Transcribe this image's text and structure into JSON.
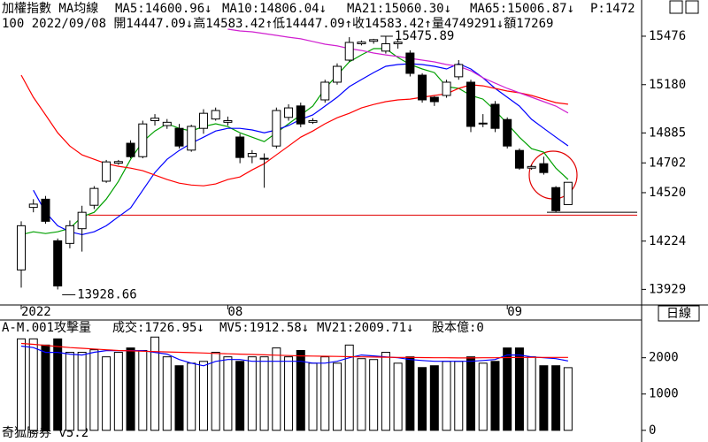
{
  "chart_data": [
    {
      "type": "candlestick",
      "title": "加權指數 MA均線",
      "subtitle": "100 2022/09/08 開14447.09↓高14583.42↑低14447.09↑收14583.42↑量4749291↓額17269",
      "categories": [
        "2022",
        null,
        null,
        null,
        null,
        null,
        null,
        null,
        null,
        null,
        null,
        null,
        null,
        null,
        null,
        null,
        null,
        "08",
        null,
        null,
        null,
        null,
        null,
        null,
        null,
        null,
        null,
        null,
        null,
        null,
        null,
        null,
        null,
        null,
        null,
        null,
        null,
        null,
        null,
        null,
        "09",
        null,
        null,
        null,
        null,
        null
      ],
      "open": [
        14048,
        14430,
        14480,
        14226,
        14210,
        14300,
        14443,
        14590,
        14700,
        14822,
        14740,
        14960,
        14930,
        14913,
        14780,
        14913,
        14970,
        14950,
        14860,
        14740,
        14725,
        14805,
        14980,
        15050,
        14950,
        15087,
        15195,
        15330,
        15430,
        15445,
        15385,
        15430,
        15373,
        15238,
        15103,
        15114,
        15228,
        15195,
        14940,
        15060,
        14967,
        14778,
        14670,
        14697,
        14551,
        14447.09
      ],
      "high": [
        14345,
        14480,
        14500,
        14240,
        14350,
        14440,
        14560,
        14720,
        14720,
        14840,
        14960,
        15000,
        14970,
        14940,
        14935,
        15030,
        15040,
        14985,
        14880,
        14780,
        14760,
        15040,
        15060,
        15070,
        14975,
        15210,
        15310,
        15470,
        15450,
        15460,
        15475.89,
        15460,
        15390,
        15250,
        15110,
        15210,
        15330,
        15210,
        15000,
        15080,
        14980,
        14790,
        14690,
        14740,
        14560,
        14583.42
      ],
      "low": [
        13940,
        14400,
        14330,
        13928.66,
        14180,
        14160,
        14420,
        14580,
        14690,
        14730,
        14730,
        14930,
        14910,
        14790,
        14770,
        14880,
        14960,
        14930,
        14700,
        14700,
        14550,
        14790,
        14960,
        14920,
        14940,
        15070,
        15180,
        15320,
        15420,
        15430,
        15370,
        15400,
        15230,
        15070,
        15050,
        15100,
        15210,
        14890,
        14920,
        14890,
        14790,
        14660,
        14660,
        14630,
        14400,
        14447.09
      ],
      "close": [
        14318,
        14450,
        14345,
        13950,
        14318,
        14400,
        14546,
        14708,
        14710,
        14740,
        14940,
        14975,
        14950,
        14805,
        14925,
        15005,
        15022,
        14960,
        14735,
        14760,
        14730,
        15022,
        15038,
        14940,
        14960,
        15195,
        15292,
        15438,
        15440,
        15455,
        15430,
        15440,
        15249,
        15087,
        15076,
        15195,
        15303,
        14925,
        14945,
        14913,
        14805,
        14670,
        14680,
        14643,
        14410,
        14583.42
      ],
      "series": [
        {
          "name": "MA5:14600.96↓",
          "color": "#00a000",
          "values": [
            14264,
            14281,
            14270,
            14281,
            14302,
            14373,
            14400,
            14481,
            14589,
            14724,
            14832,
            14897,
            14941,
            14913,
            14897,
            14924,
            14941,
            14924,
            14886,
            14859,
            14832,
            14886,
            14941,
            14995,
            15049,
            15157,
            15238,
            15319,
            15362,
            15400,
            15400,
            15346,
            15303,
            15276,
            15254,
            15168,
            15157,
            15114,
            15092,
            15022,
            14941,
            14859,
            14789,
            14767,
            14670,
            14600.96
          ]
        },
        {
          "name": "MA10:14806.04↓",
          "color": "#0000ff",
          "values": [
            null,
            14535,
            14400,
            14318,
            14281,
            14264,
            14281,
            14318,
            14373,
            14427,
            14535,
            14643,
            14724,
            14778,
            14822,
            14859,
            14897,
            14913,
            14913,
            14903,
            14886,
            14903,
            14930,
            14968,
            14995,
            15049,
            15103,
            15168,
            15211,
            15254,
            15292,
            15303,
            15308,
            15303,
            15292,
            15276,
            15308,
            15276,
            15222,
            15157,
            15103,
            15049,
            14968,
            14913,
            14859,
            14806.04
          ]
        },
        {
          "name": "MA21:15060.30↓",
          "color": "#ff0000",
          "values": [
            15238,
            15103,
            14995,
            14886,
            14805,
            14751,
            14724,
            14697,
            14681,
            14670,
            14654,
            14627,
            14600,
            14578,
            14567,
            14562,
            14573,
            14600,
            14616,
            14659,
            14697,
            14751,
            14805,
            14859,
            14897,
            14941,
            14978,
            15005,
            15038,
            15059,
            15076,
            15087,
            15092,
            15103,
            15114,
            15124,
            15157,
            15179,
            15173,
            15157,
            15141,
            15130,
            15114,
            15092,
            15070,
            15060.3
          ]
        },
        {
          "name": "MA65:15006.87↓",
          "color": "#d020d0",
          "values": [
            null,
            null,
            null,
            null,
            null,
            null,
            null,
            null,
            null,
            null,
            null,
            null,
            null,
            null,
            null,
            null,
            null,
            15519,
            15508,
            15503,
            15492,
            15481,
            15470,
            15460,
            15444,
            15427,
            15417,
            15400,
            15389,
            15373,
            15362,
            15352,
            15341,
            15330,
            15319,
            15303,
            15292,
            15265,
            15222,
            15189,
            15157,
            15130,
            15103,
            15076,
            15049,
            15006.87
          ]
        }
      ],
      "extra_legend": {
        "text": "P:1472",
        "color": "#ff40a0"
      },
      "annotations": [
        "15475.89",
        "13928.66"
      ],
      "reference_lines": [
        {
          "value": 14383,
          "color": "#e00000"
        },
        {
          "value": 14400,
          "color": "#000000"
        }
      ],
      "ylim": [
        13850,
        15600
      ],
      "yticks": [
        13929,
        14224,
        14520,
        14702,
        14885,
        15180,
        15476
      ],
      "grid": false
    },
    {
      "type": "bar",
      "title": "A-M.001攻擊量",
      "series": [
        {
          "name": "成交:1726.95↓",
          "color": "#008000",
          "values": [
            2520,
            2520,
            2350,
            2520,
            2150,
            2150,
            2220,
            2025,
            2150,
            2270,
            2200,
            2570,
            2025,
            1780,
            1850,
            1900,
            2150,
            2025,
            1900,
            2025,
            2025,
            2270,
            2025,
            2200,
            1850,
            2025,
            1850,
            2350,
            1975,
            1950,
            2150,
            1850,
            2025,
            1730,
            1780,
            1900,
            1900,
            2025,
            1850,
            1900,
            2270,
            2270,
            2025,
            1780,
            1780,
            1726.95
          ]
        },
        {
          "name": "MV5:1912.58↓",
          "color": "#0000ff",
          "values": [
            2321,
            2280,
            2148,
            2148,
            2100,
            2074,
            2150,
            2198,
            2198,
            2198,
            2198,
            2148,
            2100,
            1950,
            1850,
            1778,
            1900,
            1951,
            1951,
            1901,
            1901,
            1901,
            1901,
            1901,
            1852,
            1852,
            1901,
            2000,
            2074,
            2050,
            2025,
            2000,
            1951,
            1925,
            1901,
            1901,
            1901,
            1901,
            1925,
            1951,
            2074,
            2074,
            2025,
            2000,
            1975,
            1912.58
          ]
        },
        {
          "name": "MV21:2009.71↓",
          "color": "#ff0000",
          "values": [
            2395,
            2370,
            2340,
            2310,
            2280,
            2260,
            2240,
            2220,
            2200,
            2190,
            2180,
            2170,
            2160,
            2150,
            2140,
            2130,
            2120,
            2110,
            2100,
            2090,
            2080,
            2070,
            2060,
            2050,
            2045,
            2040,
            2035,
            2030,
            2025,
            2020,
            2015,
            2010,
            2010,
            2005,
            2000,
            2000,
            1995,
            1995,
            2000,
            2000,
            2005,
            2010,
            2010,
            2010,
            2010,
            2009.71
          ]
        }
      ],
      "extra_legend": {
        "text": "股本億:0",
        "color": "#d020d0"
      },
      "ylim": [
        -200,
        2650
      ],
      "yticks": [
        0,
        1000,
        2000
      ],
      "grid": false
    }
  ],
  "period": "日線",
  "footer": "奇狐勝券 v5.2"
}
